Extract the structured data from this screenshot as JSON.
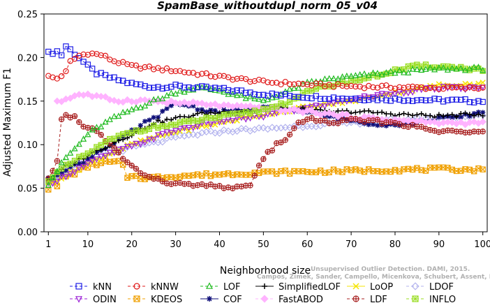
{
  "chart_data": {
    "type": "line",
    "title": "SpamBase_withoutdupl_norm_05_v04",
    "xlabel": "Neighborhood size",
    "ylabel": "Adjusted Maximum F1",
    "xlim": [
      1,
      100
    ],
    "ylim": [
      0.0,
      0.25
    ],
    "x_ticks": [
      "1",
      "10",
      "20",
      "30",
      "40",
      "50",
      "60",
      "70",
      "80",
      "90",
      "100"
    ],
    "y_ticks": [
      "0.00",
      "0.05",
      "0.10",
      "0.15",
      "0.20",
      "0.25"
    ],
    "grid": false,
    "legend_position": "bottom",
    "watermark": [
      "Unsupervised Outlier Detection. DAMI, 2015.",
      "Campos, Zimek, Sander, Campello, Micenkova, Schubert, Assent, Houle"
    ],
    "series": [
      {
        "name": "kNN",
        "color": "#1f1fe6",
        "marker": "square",
        "dash": "4,3",
        "knots": [
          [
            1,
            0.205
          ],
          [
            3,
            0.207
          ],
          [
            4,
            0.203
          ],
          [
            5,
            0.213
          ],
          [
            6,
            0.209
          ],
          [
            8,
            0.2
          ],
          [
            10,
            0.19
          ],
          [
            12,
            0.182
          ],
          [
            15,
            0.177
          ],
          [
            20,
            0.17
          ],
          [
            25,
            0.166
          ],
          [
            30,
            0.167
          ],
          [
            40,
            0.164
          ],
          [
            50,
            0.158
          ],
          [
            60,
            0.155
          ],
          [
            70,
            0.153
          ],
          [
            80,
            0.152
          ],
          [
            90,
            0.151
          ],
          [
            100,
            0.15
          ]
        ]
      },
      {
        "name": "kNNW",
        "color": "#e01a1a",
        "marker": "circle",
        "dash": "4,3",
        "knots": [
          [
            1,
            0.178
          ],
          [
            3,
            0.176
          ],
          [
            5,
            0.183
          ],
          [
            6,
            0.195
          ],
          [
            8,
            0.202
          ],
          [
            10,
            0.205
          ],
          [
            13,
            0.203
          ],
          [
            16,
            0.196
          ],
          [
            20,
            0.19
          ],
          [
            30,
            0.185
          ],
          [
            40,
            0.178
          ],
          [
            50,
            0.172
          ],
          [
            60,
            0.169
          ],
          [
            70,
            0.167
          ],
          [
            80,
            0.166
          ],
          [
            90,
            0.165
          ],
          [
            100,
            0.165
          ]
        ]
      },
      {
        "name": "LOF",
        "color": "#22bb22",
        "marker": "triangle-up",
        "dash": "4,3",
        "knots": [
          [
            1,
            0.055
          ],
          [
            3,
            0.07
          ],
          [
            5,
            0.085
          ],
          [
            8,
            0.1
          ],
          [
            10,
            0.112
          ],
          [
            15,
            0.128
          ],
          [
            20,
            0.14
          ],
          [
            25,
            0.15
          ],
          [
            30,
            0.16
          ],
          [
            35,
            0.165
          ],
          [
            40,
            0.162
          ],
          [
            45,
            0.155
          ],
          [
            50,
            0.15
          ],
          [
            55,
            0.16
          ],
          [
            60,
            0.17
          ],
          [
            65,
            0.175
          ],
          [
            70,
            0.178
          ],
          [
            80,
            0.183
          ],
          [
            90,
            0.187
          ],
          [
            100,
            0.187
          ]
        ]
      },
      {
        "name": "SimplifiedLOF",
        "color": "#000000",
        "marker": "plus",
        "dash": "",
        "knots": [
          [
            1,
            0.06
          ],
          [
            5,
            0.075
          ],
          [
            10,
            0.088
          ],
          [
            15,
            0.1
          ],
          [
            20,
            0.112
          ],
          [
            25,
            0.125
          ],
          [
            30,
            0.13
          ],
          [
            35,
            0.135
          ],
          [
            40,
            0.137
          ],
          [
            50,
            0.14
          ],
          [
            55,
            0.142
          ],
          [
            60,
            0.14
          ],
          [
            65,
            0.137
          ],
          [
            70,
            0.138
          ],
          [
            75,
            0.137
          ],
          [
            80,
            0.135
          ],
          [
            90,
            0.133
          ],
          [
            100,
            0.135
          ]
        ]
      },
      {
        "name": "LoOP",
        "color": "#f5e400",
        "marker": "x",
        "dash": "",
        "knots": [
          [
            1,
            0.055
          ],
          [
            5,
            0.065
          ],
          [
            10,
            0.078
          ],
          [
            15,
            0.09
          ],
          [
            20,
            0.1
          ],
          [
            25,
            0.108
          ],
          [
            30,
            0.115
          ],
          [
            35,
            0.12
          ],
          [
            40,
            0.125
          ],
          [
            45,
            0.13
          ],
          [
            50,
            0.135
          ],
          [
            60,
            0.143
          ],
          [
            70,
            0.15
          ],
          [
            80,
            0.16
          ],
          [
            90,
            0.168
          ],
          [
            100,
            0.17
          ]
        ]
      },
      {
        "name": "LDOF",
        "color": "#b3b3ee",
        "marker": "diamond",
        "dash": "4,3",
        "knots": [
          [
            1,
            0.055
          ],
          [
            5,
            0.07
          ],
          [
            10,
            0.082
          ],
          [
            15,
            0.09
          ],
          [
            20,
            0.097
          ],
          [
            25,
            0.102
          ],
          [
            30,
            0.108
          ],
          [
            35,
            0.112
          ],
          [
            40,
            0.115
          ],
          [
            45,
            0.117
          ],
          [
            50,
            0.118
          ],
          [
            60,
            0.122
          ],
          [
            70,
            0.125
          ],
          [
            80,
            0.128
          ],
          [
            90,
            0.131
          ],
          [
            100,
            0.133
          ]
        ]
      },
      {
        "name": "ODIN",
        "color": "#9b1fd6",
        "marker": "triangle-down",
        "dash": "4,3",
        "knots": [
          [
            1,
            0.055
          ],
          [
            5,
            0.065
          ],
          [
            10,
            0.078
          ],
          [
            15,
            0.09
          ],
          [
            20,
            0.098
          ],
          [
            25,
            0.108
          ],
          [
            30,
            0.117
          ],
          [
            35,
            0.122
          ],
          [
            40,
            0.127
          ],
          [
            45,
            0.13
          ],
          [
            50,
            0.133
          ],
          [
            55,
            0.138
          ],
          [
            60,
            0.142
          ],
          [
            70,
            0.152
          ],
          [
            80,
            0.16
          ],
          [
            90,
            0.165
          ],
          [
            100,
            0.165
          ]
        ]
      },
      {
        "name": "KDEOS",
        "color": "#f0a000",
        "marker": "square-x",
        "dash": "4,3",
        "knots": [
          [
            1,
            0.05
          ],
          [
            2,
            0.055
          ],
          [
            3,
            0.052
          ],
          [
            4,
            0.063
          ],
          [
            6,
            0.065
          ],
          [
            8,
            0.07
          ],
          [
            10,
            0.075
          ],
          [
            12,
            0.078
          ],
          [
            15,
            0.08
          ],
          [
            17,
            0.08
          ],
          [
            18,
            0.076
          ],
          [
            19,
            0.06
          ],
          [
            20,
            0.065
          ],
          [
            22,
            0.062
          ],
          [
            25,
            0.062
          ],
          [
            30,
            0.064
          ],
          [
            40,
            0.066
          ],
          [
            50,
            0.068
          ],
          [
            60,
            0.069
          ],
          [
            70,
            0.07
          ],
          [
            80,
            0.071
          ],
          [
            90,
            0.072
          ],
          [
            100,
            0.071
          ]
        ]
      },
      {
        "name": "COF",
        "color": "#10107a",
        "marker": "asterisk",
        "dash": "",
        "knots": [
          [
            1,
            0.06
          ],
          [
            5,
            0.072
          ],
          [
            8,
            0.078
          ],
          [
            10,
            0.083
          ],
          [
            13,
            0.095
          ],
          [
            15,
            0.098
          ],
          [
            17,
            0.105
          ],
          [
            20,
            0.115
          ],
          [
            23,
            0.125
          ],
          [
            25,
            0.13
          ],
          [
            28,
            0.14
          ],
          [
            30,
            0.147
          ],
          [
            33,
            0.145
          ],
          [
            36,
            0.14
          ],
          [
            40,
            0.138
          ],
          [
            45,
            0.14
          ],
          [
            50,
            0.142
          ],
          [
            55,
            0.14
          ],
          [
            58,
            0.14
          ],
          [
            60,
            0.138
          ],
          [
            65,
            0.132
          ],
          [
            70,
            0.128
          ],
          [
            75,
            0.124
          ],
          [
            80,
            0.123
          ],
          [
            85,
            0.125
          ],
          [
            90,
            0.13
          ],
          [
            95,
            0.132
          ],
          [
            100,
            0.138
          ]
        ]
      },
      {
        "name": "FastABOD",
        "color": "#ffb3ff",
        "marker": "diamond-filled",
        "dash": "4,3",
        "knots": [
          [
            3,
            0.15
          ],
          [
            5,
            0.152
          ],
          [
            8,
            0.158
          ],
          [
            10,
            0.157
          ],
          [
            12,
            0.155
          ],
          [
            15,
            0.152
          ],
          [
            18,
            0.15
          ],
          [
            20,
            0.151
          ],
          [
            25,
            0.15
          ],
          [
            30,
            0.148
          ],
          [
            35,
            0.147
          ],
          [
            40,
            0.145
          ],
          [
            45,
            0.143
          ],
          [
            50,
            0.142
          ],
          [
            55,
            0.14
          ],
          [
            60,
            0.138
          ],
          [
            65,
            0.135
          ],
          [
            70,
            0.132
          ],
          [
            80,
            0.128
          ],
          [
            90,
            0.125
          ],
          [
            100,
            0.125
          ]
        ]
      },
      {
        "name": "LDF",
        "color": "#a82020",
        "marker": "circle-plus",
        "dash": "4,3",
        "knots": [
          [
            1,
            0.06
          ],
          [
            2,
            0.068
          ],
          [
            3,
            0.08
          ],
          [
            4,
            0.13
          ],
          [
            5,
            0.135
          ],
          [
            6,
            0.13
          ],
          [
            7,
            0.133
          ],
          [
            8,
            0.125
          ],
          [
            10,
            0.12
          ],
          [
            12,
            0.115
          ],
          [
            14,
            0.105
          ],
          [
            16,
            0.095
          ],
          [
            18,
            0.085
          ],
          [
            20,
            0.075
          ],
          [
            22,
            0.068
          ],
          [
            25,
            0.06
          ],
          [
            30,
            0.055
          ],
          [
            35,
            0.053
          ],
          [
            40,
            0.052
          ],
          [
            45,
            0.05
          ],
          [
            47,
            0.055
          ],
          [
            49,
            0.075
          ],
          [
            51,
            0.09
          ],
          [
            53,
            0.1
          ],
          [
            56,
            0.11
          ],
          [
            58,
            0.125
          ],
          [
            60,
            0.13
          ],
          [
            63,
            0.127
          ],
          [
            66,
            0.125
          ],
          [
            70,
            0.128
          ],
          [
            75,
            0.127
          ],
          [
            80,
            0.125
          ],
          [
            85,
            0.12
          ],
          [
            90,
            0.115
          ],
          [
            95,
            0.115
          ],
          [
            100,
            0.117
          ]
        ]
      },
      {
        "name": "INFLO",
        "color": "#99dd22",
        "marker": "square-star",
        "dash": "4,3",
        "knots": [
          [
            1,
            0.06
          ],
          [
            5,
            0.075
          ],
          [
            10,
            0.09
          ],
          [
            15,
            0.105
          ],
          [
            20,
            0.115
          ],
          [
            25,
            0.12
          ],
          [
            30,
            0.123
          ],
          [
            35,
            0.128
          ],
          [
            40,
            0.132
          ],
          [
            45,
            0.135
          ],
          [
            50,
            0.14
          ],
          [
            55,
            0.148
          ],
          [
            60,
            0.16
          ],
          [
            65,
            0.168
          ],
          [
            70,
            0.173
          ],
          [
            75,
            0.178
          ],
          [
            80,
            0.185
          ],
          [
            85,
            0.19
          ],
          [
            90,
            0.19
          ],
          [
            95,
            0.188
          ],
          [
            100,
            0.186
          ]
        ]
      }
    ]
  }
}
